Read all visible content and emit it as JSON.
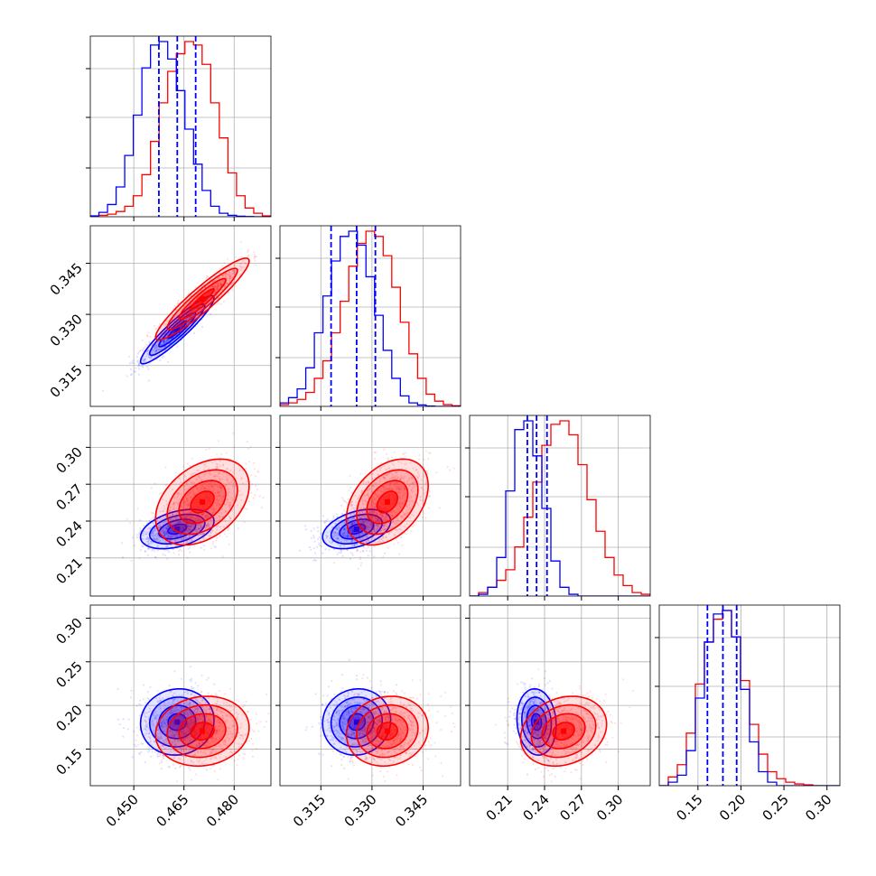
{
  "chart_data": {
    "type": "corner",
    "title": "",
    "grid": true,
    "colors": {
      "series_a": "#ff0000",
      "series_b": "#0000ff",
      "grid": "#b0b0b0",
      "axes": "#000000"
    },
    "series": [
      {
        "color": "#ff0000",
        "means": [
          0.4705,
          0.3345,
          0.2555,
          0.1705
        ],
        "sds": [
          0.007,
          0.006,
          0.0175,
          0.02
        ],
        "corr": {
          "0-1": 0.93,
          "0-2": 0.38,
          "0-3": 0.1,
          "1-2": 0.38,
          "1-3": 0.1,
          "2-3": 0.2
        }
      },
      {
        "color": "#0000ff",
        "means": [
          0.463,
          0.3255,
          0.2335,
          0.181
        ],
        "sds": [
          0.0055,
          0.005,
          0.008,
          0.019
        ],
        "quantiles_1d": [
          [
            0.4575,
            0.463,
            0.4685
          ],
          [
            0.318,
            0.3255,
            0.331
          ],
          [
            0.226,
            0.2335,
            0.242
          ],
          [
            0.161,
            0.179,
            0.195
          ]
        ],
        "corr": {
          "0-1": 0.93,
          "0-2": 0.4,
          "0-3": 0.05,
          "1-2": 0.4,
          "1-3": 0.05,
          "2-3": -0.1
        }
      }
    ],
    "panels": [
      {
        "xlim": [
          0.437,
          0.491
        ],
        "ticks": [
          0.45,
          0.465,
          0.48
        ],
        "tick_labels": [
          "0.450",
          "0.465",
          "0.480"
        ],
        "hist_red": [
          0.004,
          0.008,
          0.015,
          0.03,
          0.06,
          0.12,
          0.24,
          0.43,
          0.65,
          0.83,
          0.93,
          1.0,
          0.98,
          0.87,
          0.65,
          0.45,
          0.25,
          0.12,
          0.05,
          0.02,
          0.005
        ],
        "hist_blue": [
          0.005,
          0.025,
          0.07,
          0.17,
          0.35,
          0.58,
          0.85,
          0.98,
          1.0,
          0.9,
          0.72,
          0.5,
          0.3,
          0.15,
          0.06,
          0.02,
          0.008,
          0.003,
          0.001,
          0.0,
          0.0
        ]
      },
      {
        "xlim": [
          0.303,
          0.356
        ],
        "ticks": [
          0.315,
          0.33,
          0.345
        ],
        "tick_labels": [
          "0.315",
          "0.330",
          "0.345"
        ],
        "hist_red": [
          0.01,
          0.02,
          0.04,
          0.08,
          0.16,
          0.26,
          0.42,
          0.6,
          0.8,
          0.93,
          1.0,
          0.97,
          0.86,
          0.68,
          0.48,
          0.3,
          0.16,
          0.07,
          0.03,
          0.01,
          0.004
        ],
        "hist_blue": [
          0.02,
          0.05,
          0.1,
          0.22,
          0.42,
          0.63,
          0.83,
          0.97,
          1.0,
          0.92,
          0.74,
          0.52,
          0.32,
          0.16,
          0.06,
          0.02,
          0.008,
          0.002,
          0.0,
          0.0,
          0.0
        ]
      },
      {
        "xlim": [
          0.179,
          0.326
        ],
        "ticks": [
          0.21,
          0.24,
          0.27,
          0.3
        ],
        "tick_labels": [
          "0.21",
          "0.24",
          "0.27",
          "0.30"
        ],
        "hist_red": [
          0.0,
          0.02,
          0.05,
          0.09,
          0.15,
          0.28,
          0.45,
          0.65,
          0.86,
          0.98,
          1.0,
          0.92,
          0.75,
          0.55,
          0.37,
          0.22,
          0.12,
          0.06,
          0.02,
          0.01
        ],
        "hist_blue": [
          0.0,
          0.01,
          0.05,
          0.22,
          0.6,
          0.95,
          1.0,
          0.8,
          0.5,
          0.2,
          0.05,
          0.01,
          0.0,
          0.0,
          0.0,
          0.0,
          0.0,
          0.0,
          0.0,
          0.0
        ]
      },
      {
        "xlim": [
          0.105,
          0.315
        ],
        "ticks": [
          0.15,
          0.2,
          0.25,
          0.3
        ],
        "tick_labels": [
          "0.15",
          "0.20",
          "0.25",
          "0.30"
        ],
        "hist_red": [
          0.0,
          0.05,
          0.12,
          0.3,
          0.58,
          0.82,
          0.95,
          1.0,
          0.85,
          0.6,
          0.35,
          0.18,
          0.08,
          0.04,
          0.02,
          0.01,
          0.005,
          0.0,
          0.0,
          0.0
        ],
        "hist_blue": [
          0.0,
          0.02,
          0.06,
          0.2,
          0.5,
          0.82,
          0.98,
          1.0,
          0.85,
          0.55,
          0.25,
          0.08,
          0.02,
          0.0,
          0.0,
          0.0,
          0.0,
          0.0,
          0.0,
          0.0
        ]
      }
    ],
    "ylims": {
      "row1": [
        0.303,
        0.356
      ],
      "row2": [
        0.179,
        0.326
      ],
      "row3": [
        0.108,
        0.315
      ]
    },
    "yticks": {
      "row1": {
        "ticks": [
          0.315,
          0.33,
          0.345
        ],
        "labels": [
          "0.315",
          "0.330",
          "0.345"
        ]
      },
      "row2": {
        "ticks": [
          0.21,
          0.24,
          0.27,
          0.3
        ],
        "labels": [
          "0.21",
          "0.24",
          "0.27",
          "0.30"
        ]
      },
      "row3": {
        "ticks": [
          0.15,
          0.2,
          0.25,
          0.3
        ],
        "labels": [
          "0.15",
          "0.20",
          "0.25",
          "0.30"
        ]
      }
    }
  }
}
